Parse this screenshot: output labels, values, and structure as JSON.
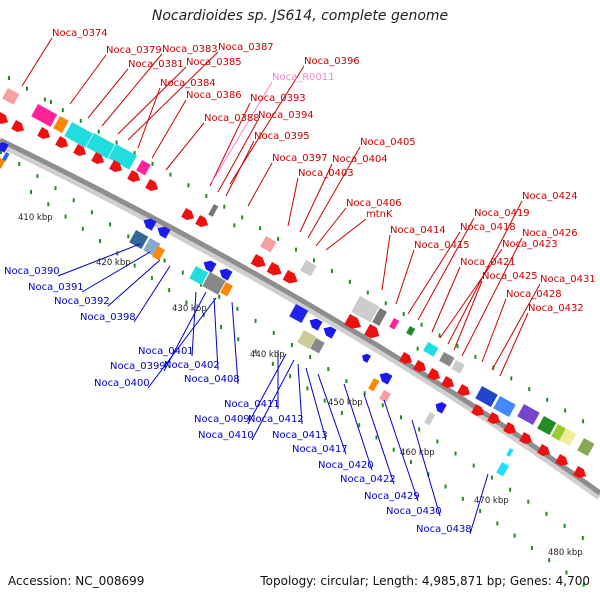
{
  "title": "Nocardioides sp. JS614, complete genome",
  "accession": "Accession: NC_008699",
  "summary": "Topology: circular; Length: 4,985,871 bp; Genes: 4,700",
  "colors": {
    "forward_label": "#cc0000",
    "reverse_label": "#0000cc",
    "rna_label": "#ee88cc",
    "backbone": "#9a9a9a",
    "tick": "#228b22"
  },
  "kbp_markers": [
    "410 kbp",
    "420 kbp",
    "430 kbp",
    "440 kbp",
    "450 kbp",
    "460 kbp",
    "470 kbp",
    "480 kbp"
  ],
  "forward_genes": [
    "Noca_0374",
    "Noca_0379",
    "Noca_0381",
    "Noca_0383",
    "Noca_0385",
    "Noca_0387",
    "Noca_0384",
    "Noca_0386",
    "Noca_0388",
    "Noca_0393",
    "Noca_0394",
    "Noca_0395",
    "Noca_0396",
    "Noca_0397",
    "Noca_0403",
    "Noca_0404",
    "Noca_0405",
    "Noca_0406",
    "mtnK",
    "Noca_0414",
    "Noca_0415",
    "Noca_0418",
    "Noca_0419",
    "Noca_0421",
    "Noca_0423",
    "Noca_0424",
    "Noca_0425",
    "Noca_0426",
    "Noca_0428",
    "Noca_0431",
    "Noca_0432"
  ],
  "rna_genes": [
    "Noca_R0011"
  ],
  "reverse_genes": [
    "Noca_0390",
    "Noca_0391",
    "Noca_0392",
    "Noca_0398",
    "Noca_0399",
    "Noca_0400",
    "Noca_0401",
    "Noca_0402",
    "Noca_0408",
    "Noca_0409",
    "Noca_0410",
    "Noca_0411",
    "Noca_0412",
    "Noca_0413",
    "Noca_0417",
    "Noca_0420",
    "Noca_0422",
    "Noca_0429",
    "Noca_0430",
    "Noca_0438"
  ]
}
